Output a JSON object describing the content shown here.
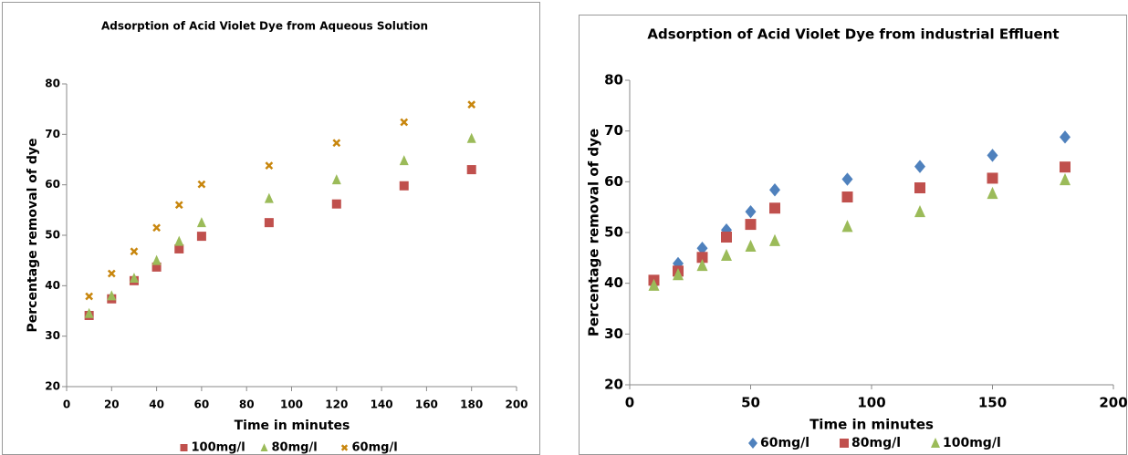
{
  "chart_data": [
    {
      "type": "scatter",
      "title": "Adsorption of Acid Violet Dye from Aqueous Solution",
      "xlabel": "Time in minutes",
      "ylabel": "Percentage removal of dye",
      "x": [
        10,
        20,
        30,
        40,
        50,
        60,
        90,
        120,
        150,
        180
      ],
      "xlim": [
        0,
        200
      ],
      "xticks": [
        0,
        20,
        40,
        60,
        80,
        100,
        120,
        140,
        160,
        180,
        200
      ],
      "ylim": [
        20,
        80
      ],
      "yticks": [
        20,
        30,
        40,
        50,
        60,
        70,
        80
      ],
      "series": [
        {
          "name": "100mg/l",
          "color": "#c0504d",
          "marker": "square",
          "values": [
            34.1,
            37.4,
            41,
            43.7,
            47.3,
            49.8,
            52.5,
            56.2,
            59.8,
            63
          ]
        },
        {
          "name": "80mg/l",
          "color": "#9bbb59",
          "marker": "triangle",
          "values": [
            34.5,
            38,
            41.5,
            45,
            48.8,
            52.5,
            57.3,
            61,
            64.8,
            69.2
          ]
        },
        {
          "name": "60mg/l",
          "color": "#c8860d",
          "marker": "x",
          "values": [
            37.9,
            42.4,
            46.8,
            51.5,
            56,
            60.1,
            63.8,
            68.3,
            72.4,
            75.9
          ]
        }
      ]
    },
    {
      "type": "scatter",
      "title": "Adsorption of Acid Violet Dye from industrial Effluent",
      "xlabel": "Time in minutes",
      "ylabel": "Percentage removal of dye",
      "x": [
        10,
        20,
        30,
        40,
        50,
        60,
        90,
        120,
        150,
        180
      ],
      "xlim": [
        0,
        200
      ],
      "xticks": [
        0,
        50,
        100,
        150,
        200
      ],
      "ylim": [
        20,
        80
      ],
      "yticks": [
        20,
        30,
        40,
        50,
        60,
        70,
        80
      ],
      "series": [
        {
          "name": "60mg/l",
          "color": "#4f81bd",
          "marker": "diamond",
          "values": [
            39.9,
            43.9,
            46.9,
            50.5,
            54.1,
            58.4,
            60.5,
            63,
            65.2,
            68.8
          ]
        },
        {
          "name": "80mg/l",
          "color": "#c0504d",
          "marker": "square",
          "values": [
            40.6,
            42.4,
            45.1,
            49.1,
            51.6,
            54.8,
            57,
            58.8,
            60.7,
            62.9
          ]
        },
        {
          "name": "100mg/l",
          "color": "#9bbb59",
          "marker": "triangle",
          "values": [
            39.6,
            41.7,
            43.5,
            45.5,
            47.3,
            48.4,
            51.2,
            54.1,
            57.7,
            60.4
          ]
        }
      ]
    }
  ]
}
